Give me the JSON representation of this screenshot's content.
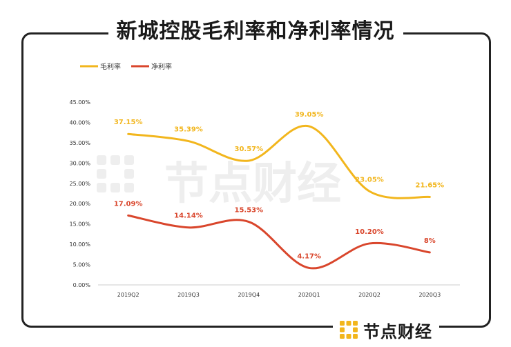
{
  "page": {
    "title": "新城控股毛利率和净利率情况",
    "brand_name": "节点财经",
    "watermark_text": "节点财经"
  },
  "colors": {
    "gross": "#f2b61d",
    "net": "#d9462c",
    "frame": "#222222",
    "brand_icon": "#f2b61d"
  },
  "chart_data": {
    "type": "line",
    "title": "新城控股毛利率和净利率情况",
    "categories": [
      "2019Q2",
      "2019Q3",
      "2019Q4",
      "2020Q1",
      "2020Q2",
      "2020Q3"
    ],
    "series": [
      {
        "name": "毛利率",
        "values": [
          37.15,
          35.39,
          30.57,
          39.05,
          23.05,
          21.65
        ],
        "labels": [
          "37.15%",
          "35.39%",
          "30.57%",
          "39.05%",
          "23.05%",
          "21.65%"
        ]
      },
      {
        "name": "净利率",
        "values": [
          17.09,
          14.14,
          15.53,
          4.17,
          10.2,
          8
        ],
        "labels": [
          "17.09%",
          "14.14%",
          "15.53%",
          "4.17%",
          "10.20%",
          "8%"
        ]
      }
    ],
    "ylim": [
      0,
      45
    ],
    "yticks": [
      0,
      5,
      10,
      15,
      20,
      25,
      30,
      35,
      40,
      45
    ],
    "ytick_labels": [
      "0.00%",
      "5.00%",
      "10.00%",
      "15.00%",
      "20.00%",
      "25.00%",
      "30.00%",
      "35.00%",
      "40.00%",
      "45.00%"
    ],
    "legend_position": "top-left",
    "grid": false,
    "xlabel": "",
    "ylabel": ""
  }
}
